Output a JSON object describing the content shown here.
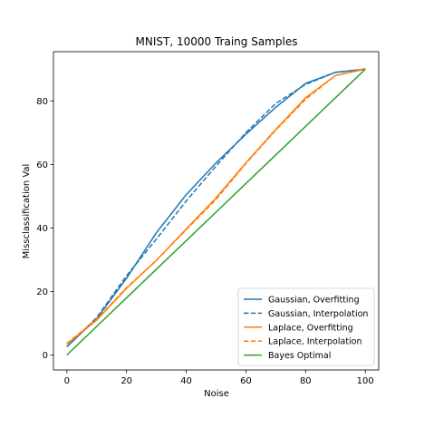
{
  "chart_data": {
    "type": "line",
    "title": "MNIST, 10000 Traing Samples",
    "xlabel": "Noise",
    "ylabel": "Missclassification Val",
    "xlim": [
      -4.5,
      104.5
    ],
    "ylim": [
      -4.7,
      95.5
    ],
    "xticks": [
      0,
      20,
      40,
      60,
      80,
      100
    ],
    "yticks": [
      0,
      20,
      40,
      60,
      80
    ],
    "grid": false,
    "legend_position": "lower right",
    "series": [
      {
        "name": "Gaussian, Overfitting",
        "color": "#1f77b4",
        "dash": "solid",
        "x": [
          0,
          10,
          20,
          30,
          40,
          50,
          60,
          70,
          80,
          90,
          100
        ],
        "y": [
          2.6,
          11.5,
          24.2,
          38.5,
          50.5,
          60.5,
          69.5,
          78.0,
          85.5,
          89.0,
          90.0
        ]
      },
      {
        "name": "Gaussian, Interpolation",
        "color": "#1f77b4",
        "dash": "dashed",
        "x": [
          0,
          10,
          20,
          30,
          40,
          50,
          60,
          70,
          80,
          90,
          100
        ],
        "y": [
          2.6,
          11.8,
          25.0,
          36.5,
          48.5,
          59.5,
          70.0,
          79.2,
          85.2,
          89.0,
          90.0
        ]
      },
      {
        "name": "Laplace, Overfitting",
        "color": "#ff7f0e",
        "dash": "solid",
        "x": [
          0,
          10,
          20,
          30,
          40,
          50,
          60,
          70,
          80,
          90,
          100
        ],
        "y": [
          3.4,
          11.0,
          21.0,
          29.8,
          39.7,
          49.5,
          60.5,
          71.0,
          81.0,
          88.0,
          90.0
        ]
      },
      {
        "name": "Laplace, Interpolation",
        "color": "#ff7f0e",
        "dash": "dashed",
        "x": [
          0,
          10,
          20,
          30,
          40,
          50,
          60,
          70,
          80,
          90,
          100
        ],
        "y": [
          3.7,
          11.3,
          21.2,
          29.8,
          39.5,
          49.0,
          60.3,
          70.8,
          80.5,
          88.0,
          90.2
        ]
      },
      {
        "name": "Bayes Optimal",
        "color": "#2ca02c",
        "dash": "solid",
        "x": [
          0,
          100
        ],
        "y": [
          0,
          90
        ]
      }
    ]
  }
}
